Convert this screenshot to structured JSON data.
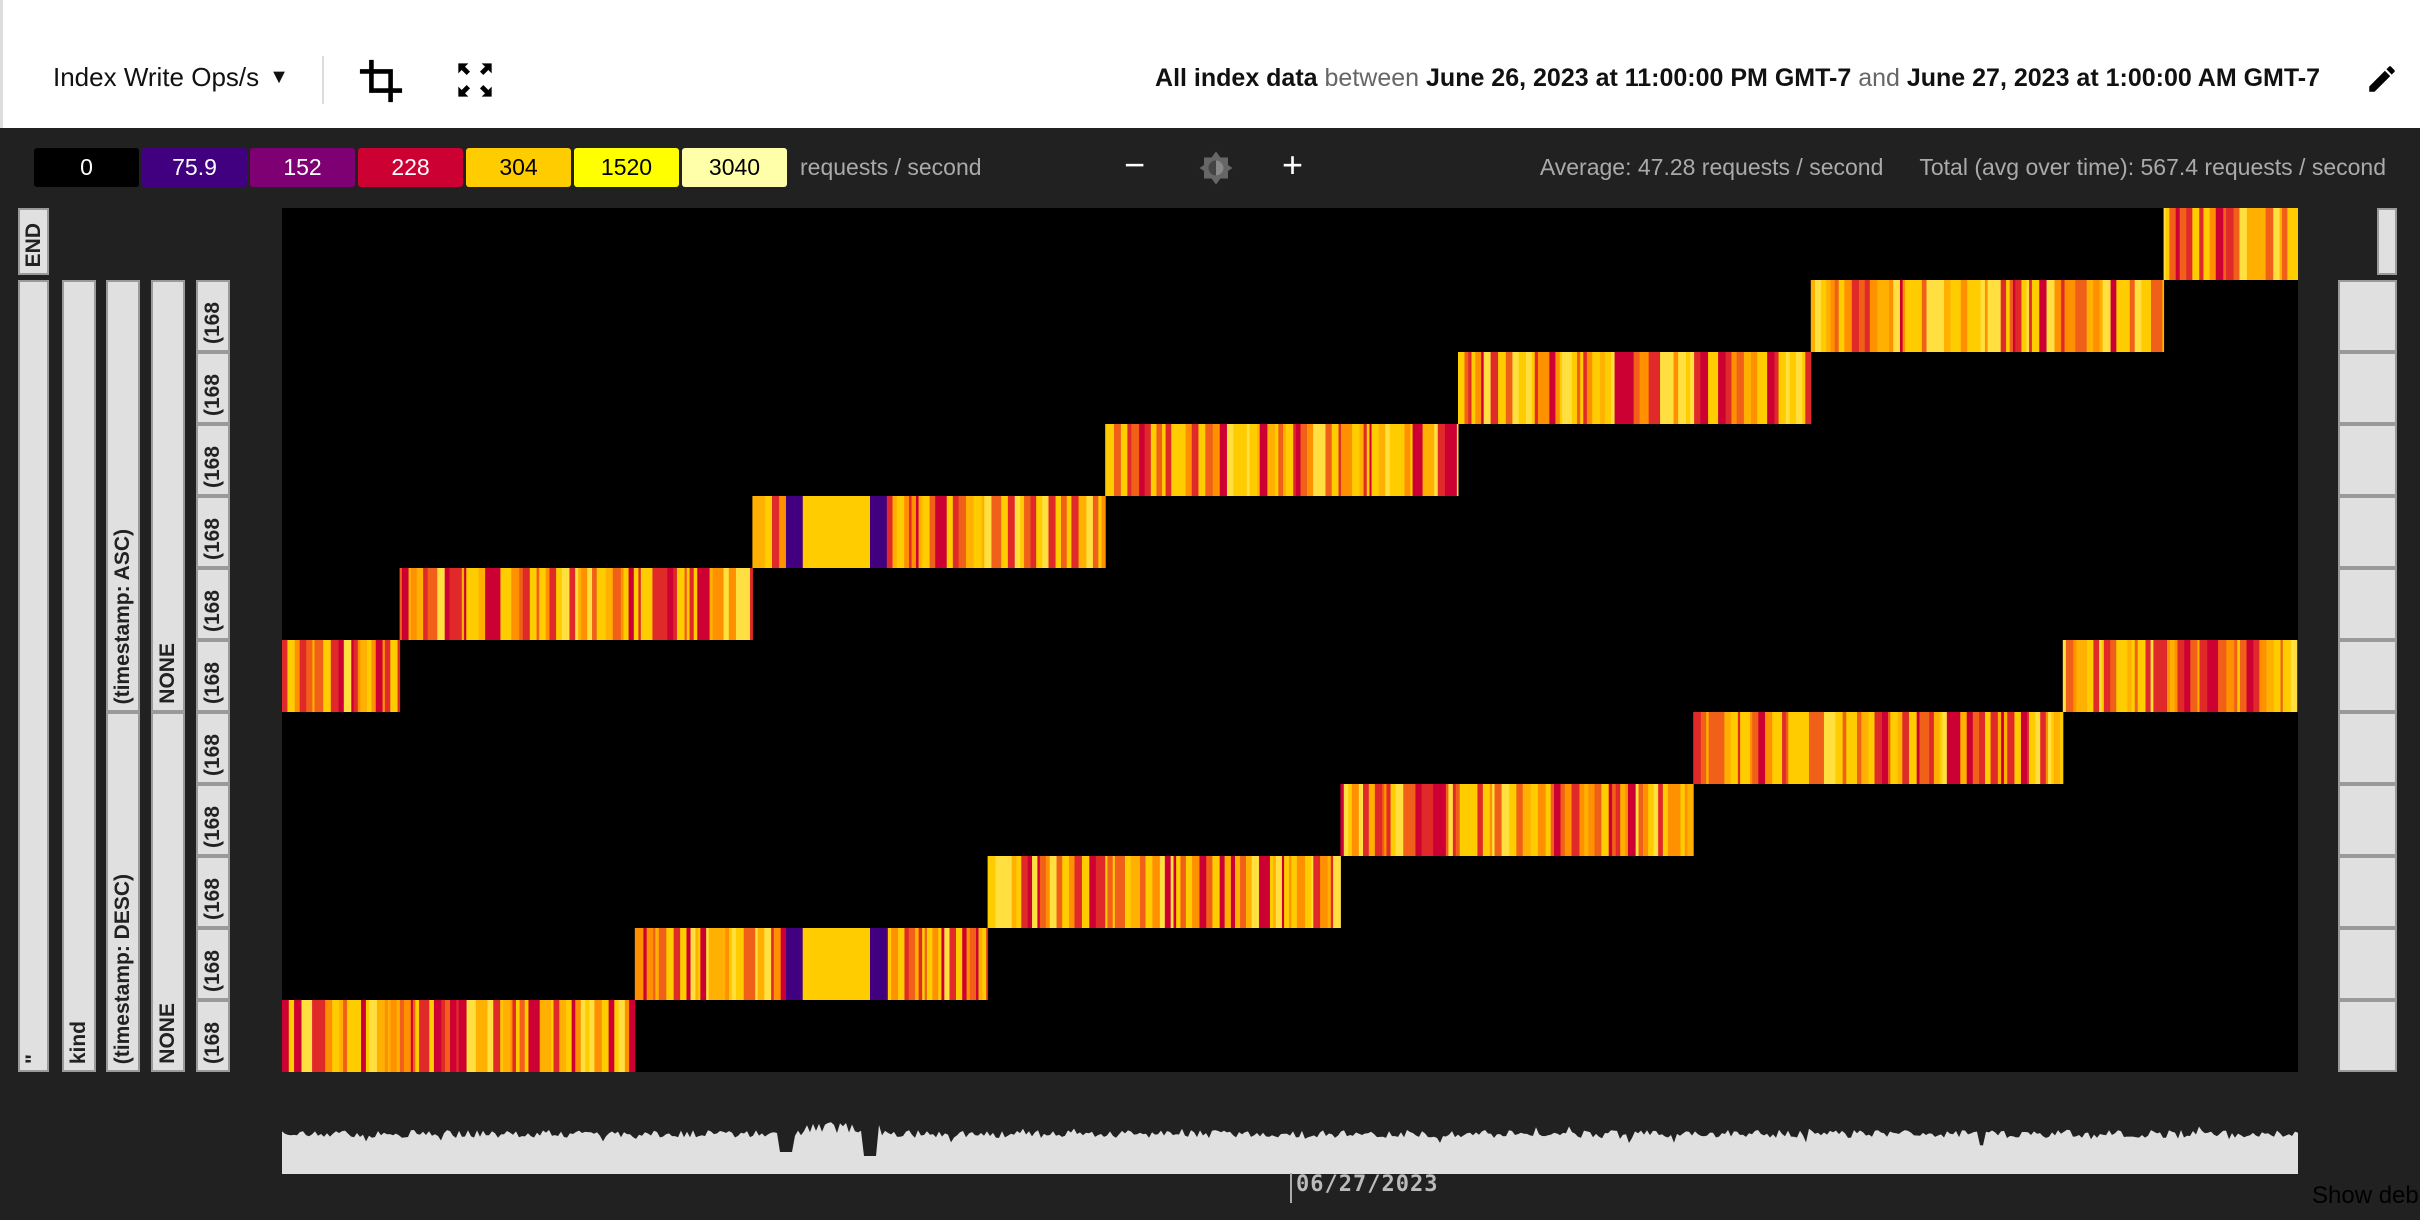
{
  "header": {
    "metric_label": "Index Write Ops/s",
    "range": {
      "prefix": "All index data",
      "between": "between",
      "start": "June 26, 2023 at 11:00:00 PM GMT-7",
      "and": "and",
      "end": "June 27, 2023 at 1:00:00 AM GMT-7"
    },
    "icons": [
      "crop-icon",
      "fullscreen-icon",
      "pencil-icon"
    ]
  },
  "legend": {
    "items": [
      {
        "label": "0",
        "color": "#000000",
        "text_color": "#ffffff"
      },
      {
        "label": "75.9",
        "color": "#40007f",
        "text_color": "#ffffff"
      },
      {
        "label": "152",
        "color": "#7f0073",
        "text_color": "#ffffff"
      },
      {
        "label": "228",
        "color": "#cc0033",
        "text_color": "#ffffff"
      },
      {
        "label": "304",
        "color": "#ffcc00",
        "text_color": "#000000"
      },
      {
        "label": "1520",
        "color": "#ffff00",
        "text_color": "#000000"
      },
      {
        "label": "3040",
        "color": "#ffffaa",
        "text_color": "#000000"
      }
    ],
    "unit": "requests / second"
  },
  "controls": {
    "zoom_out": "−",
    "zoom_in": "+"
  },
  "stats": {
    "average": "Average: 47.28 requests / second",
    "total": "Total (avg over time): 567.4 requests / second"
  },
  "key_labels": {
    "col1": {
      "end": "END",
      "rest": "\""
    },
    "col2": "kind",
    "col3": {
      "upper": "(timestamp: ASC)",
      "lower": "(timestamp: DESC)"
    },
    "col4": {
      "upper": "NONE",
      "lower": "NONE"
    },
    "col5": [
      "(168",
      "(168",
      "(168",
      "(168",
      "(168",
      "(168",
      "(168",
      "(168",
      "(168",
      "(168",
      "(168"
    ]
  },
  "chart_data": {
    "type": "heatmap",
    "x_range": [
      "23:00",
      "01:00"
    ],
    "rows": 12,
    "bands": [
      {
        "row": 0,
        "start": "00:52",
        "end": "01:00"
      },
      {
        "row": 1,
        "start": "00:31",
        "end": "00:52"
      },
      {
        "row": 2,
        "start": "00:10",
        "end": "00:31"
      },
      {
        "row": 3,
        "start": "23:49",
        "end": "00:10"
      },
      {
        "row": 4,
        "start": "23:28",
        "end": "23:49",
        "uniform": [
          {
            "start": "23:30",
            "end": "23:31",
            "color": "#40007f"
          },
          {
            "start": "23:31",
            "end": "23:35",
            "color": "#ffcc00"
          },
          {
            "start": "23:35",
            "end": "23:36",
            "color": "#40007f"
          }
        ]
      },
      {
        "row": 5,
        "start": "23:07",
        "end": "23:28"
      },
      {
        "row": 6,
        "start": "23:00",
        "end": "23:07"
      },
      {
        "row": 6,
        "start": "00:46",
        "end": "01:00"
      },
      {
        "row": 7,
        "start": "00:24",
        "end": "00:46"
      },
      {
        "row": 8,
        "start": "00:03",
        "end": "00:24"
      },
      {
        "row": 9,
        "start": "23:42",
        "end": "00:03"
      },
      {
        "row": 10,
        "start": "23:21",
        "end": "23:42",
        "uniform": [
          {
            "start": "23:30",
            "end": "23:31",
            "color": "#40007f"
          },
          {
            "start": "23:31",
            "end": "23:35",
            "color": "#ffcc00"
          },
          {
            "start": "23:35",
            "end": "23:36",
            "color": "#40007f"
          }
        ]
      },
      {
        "row": 11,
        "start": "23:00",
        "end": "23:21"
      }
    ],
    "x_tick_labels": [
      "06/27/2023"
    ],
    "sparkline_color": "#e0e0e0"
  },
  "footer": {
    "debug_link": "Show debu"
  }
}
